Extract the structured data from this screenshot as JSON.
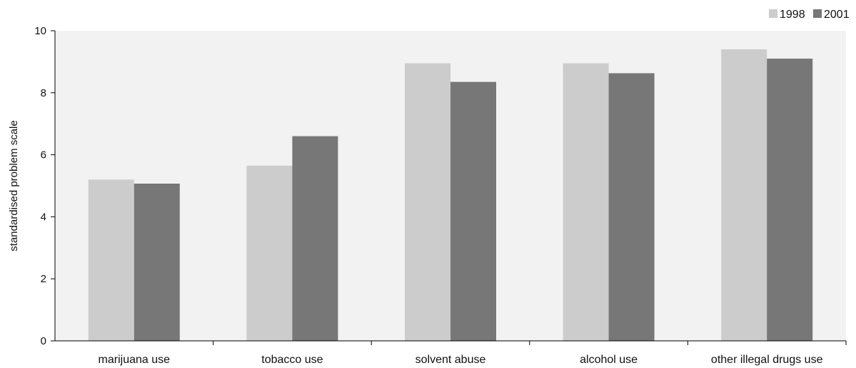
{
  "chart_data": {
    "type": "bar",
    "title": "",
    "xlabel": "",
    "ylabel": "standardised problem scale",
    "categories": [
      "marijuana use",
      "tobacco use",
      "solvent abuse",
      "alcohol use",
      "other illegal drugs use"
    ],
    "series": [
      {
        "name": "1998",
        "values": [
          5.2,
          5.65,
          8.95,
          8.95,
          9.4
        ],
        "color": "#cccccc"
      },
      {
        "name": "2001",
        "values": [
          5.07,
          6.6,
          8.35,
          8.63,
          9.1
        ],
        "color": "#777777"
      }
    ],
    "ylim": [
      0,
      10
    ],
    "yticks": [
      "0",
      "2",
      "4",
      "6",
      "8",
      "10"
    ],
    "grid": false,
    "plot_background": "#f2f2f2",
    "legend_position": "top-right"
  }
}
